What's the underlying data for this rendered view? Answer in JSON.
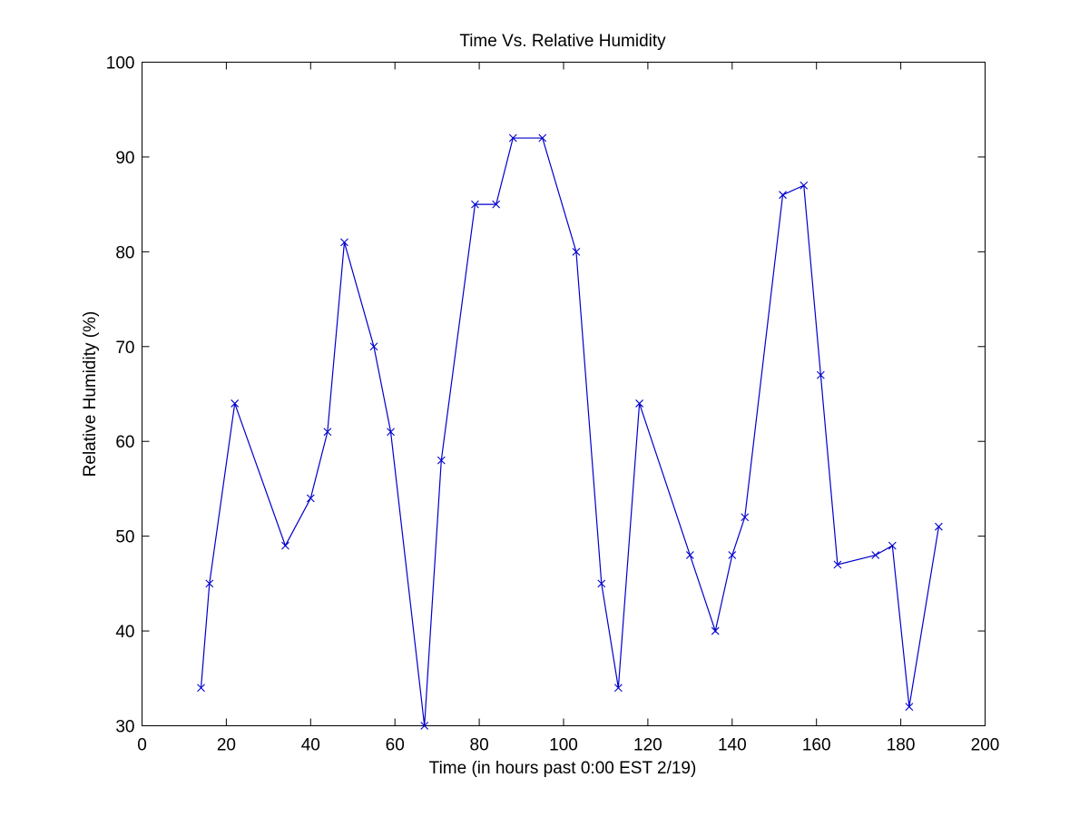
{
  "chart_data": {
    "type": "line",
    "title": "Time Vs. Relative Humidity",
    "xlabel": "Time (in hours past 0:00 EST 2/19)",
    "ylabel": "Relative Humidity (%)",
    "xlim": [
      0,
      200
    ],
    "ylim": [
      30,
      100
    ],
    "xticks": [
      0,
      20,
      40,
      60,
      80,
      100,
      120,
      140,
      160,
      180,
      200
    ],
    "yticks": [
      30,
      40,
      50,
      60,
      70,
      80,
      90,
      100
    ],
    "grid": false,
    "marker": "x",
    "color": "#0000cc",
    "series": [
      {
        "x": [
          14,
          16,
          22,
          34,
          40,
          44,
          48,
          55,
          59,
          67,
          71,
          79,
          84,
          88,
          95,
          103,
          109,
          113,
          118,
          130,
          136,
          140,
          143,
          152,
          157,
          161,
          165,
          174,
          178,
          182,
          189
        ],
        "y": [
          34,
          45,
          64,
          49,
          54,
          61,
          81,
          70,
          61,
          30,
          58,
          85,
          85,
          92,
          92,
          80,
          45,
          34,
          64,
          48,
          40,
          48,
          52,
          86,
          87,
          67,
          47,
          48,
          49,
          32,
          51
        ]
      }
    ]
  }
}
